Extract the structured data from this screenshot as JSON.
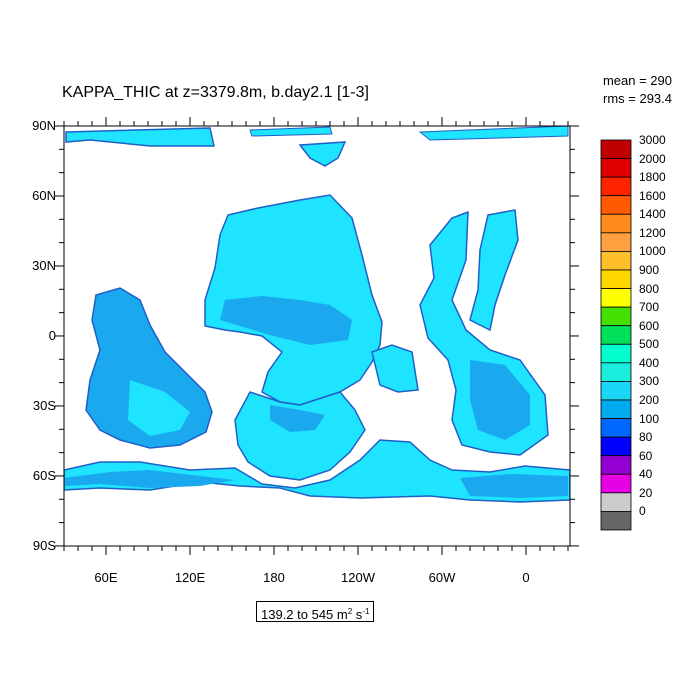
{
  "title": "KAPPA_THIC at z=3379.8m, b.day2.1 [1-3]",
  "stats": {
    "mean": "mean = 290",
    "rms": "rms = 293.4"
  },
  "range": {
    "prefix": "139.2 to 545 m",
    "exp1": "2",
    "mid": " s",
    "exp2": "-1"
  },
  "lat_labels": [
    "90N",
    "60N",
    "30N",
    "0",
    "30S",
    "60S",
    "90S"
  ],
  "lon_labels": [
    "60E",
    "120E",
    "180",
    "120W",
    "60W",
    "0"
  ],
  "colorbar": {
    "levels": [
      "3000",
      "2000",
      "1800",
      "1600",
      "1400",
      "1200",
      "1000",
      "900",
      "800",
      "700",
      "600",
      "500",
      "400",
      "300",
      "200",
      "100",
      "80",
      "60",
      "40",
      "20",
      "0"
    ],
    "colors": [
      "#c00000",
      "#e00000",
      "#ff2400",
      "#ff5a00",
      "#ff8c1a",
      "#ffa040",
      "#ffbf2a",
      "#ffd700",
      "#ffff00",
      "#44e000",
      "#00e05a",
      "#00ffcc",
      "#19eedc",
      "#1ad8f5",
      "#00aaee",
      "#0068ff",
      "#0000ff",
      "#9400d3",
      "#e600e6",
      "#cccccc",
      "#666666"
    ]
  },
  "map_colors": {
    "ocean_light": "#1ee4ff",
    "ocean_mid": "#1aa8ee",
    "ocean_dark": "#1f5fc8",
    "land": "#ffffff"
  }
}
